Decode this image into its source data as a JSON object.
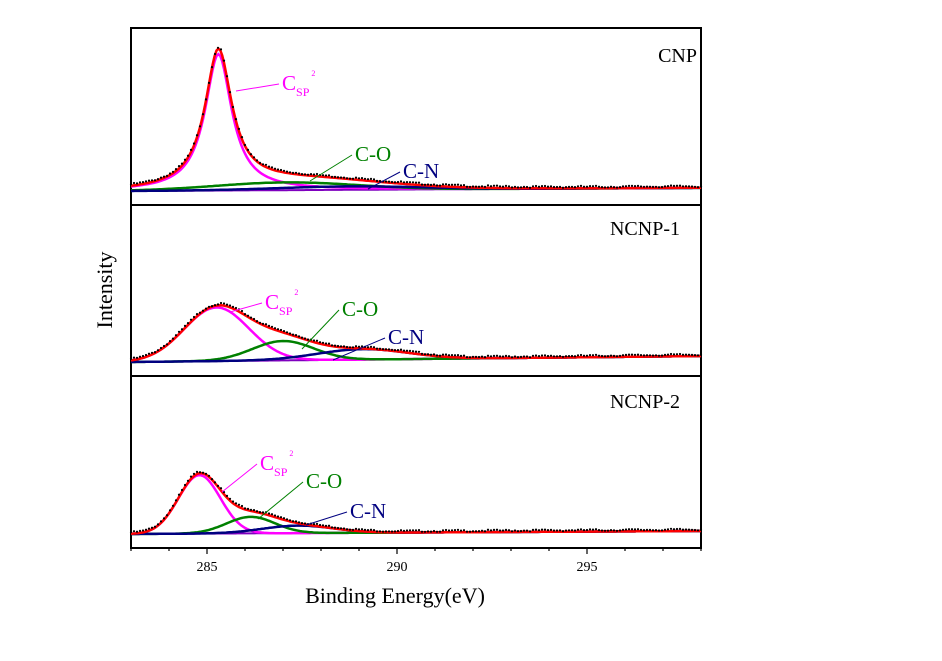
{
  "chart_data": {
    "type": "line",
    "xlabel": "Binding Energy(eV)",
    "ylabel": "Intensity",
    "xlim": [
      283,
      298
    ],
    "x_ticks": [
      285,
      290,
      295
    ],
    "x_tick_labels": [
      "285",
      "290",
      "295"
    ],
    "colors": {
      "data": "#000000",
      "envelope": "#ff0000",
      "csp2": "#ff00ff",
      "co": "#008000",
      "cn": "#000080",
      "background": "#7f00bf",
      "axis": "#000000"
    },
    "panels": [
      {
        "name": "CNP",
        "ylim": [
          0,
          1
        ],
        "peaks": [
          {
            "id": "csp2",
            "label": "C",
            "sub": "SP",
            "sup": "2",
            "center": 285.3,
            "fwhm": 0.85,
            "height": 0.88
          },
          {
            "id": "co",
            "label": "C-O",
            "center": 287.1,
            "fwhm": 4.4,
            "height": 0.05
          },
          {
            "id": "cn",
            "label": "C-N",
            "center": 288.8,
            "fwhm": 4.5,
            "height": 0.022
          }
        ],
        "baseline": [
          0.0,
          0.02
        ]
      },
      {
        "name": "NCNP-1",
        "ylim": [
          0,
          1
        ],
        "peaks": [
          {
            "id": "csp2",
            "label": "C",
            "sub": "SP",
            "sup": "2",
            "center": 285.25,
            "fwhm": 2.0,
            "height": 0.36
          },
          {
            "id": "co",
            "label": "C-O",
            "center": 287.0,
            "fwhm": 1.9,
            "height": 0.13
          },
          {
            "id": "cn",
            "label": "C-N",
            "center": 289.1,
            "fwhm": 2.8,
            "height": 0.07
          }
        ],
        "baseline": [
          0.0,
          0.04
        ]
      },
      {
        "name": "NCNP-2",
        "ylim": [
          0,
          1
        ],
        "peaks": [
          {
            "id": "csp2",
            "label": "C",
            "sub": "SP",
            "sup": "2",
            "center": 284.8,
            "fwhm": 1.3,
            "height": 0.39
          },
          {
            "id": "co",
            "label": "C-O",
            "center": 286.15,
            "fwhm": 1.5,
            "height": 0.11
          },
          {
            "id": "cn",
            "label": "C-N",
            "center": 287.4,
            "fwhm": 2.2,
            "height": 0.05
          }
        ],
        "baseline": [
          0.0,
          0.02
        ]
      }
    ]
  }
}
